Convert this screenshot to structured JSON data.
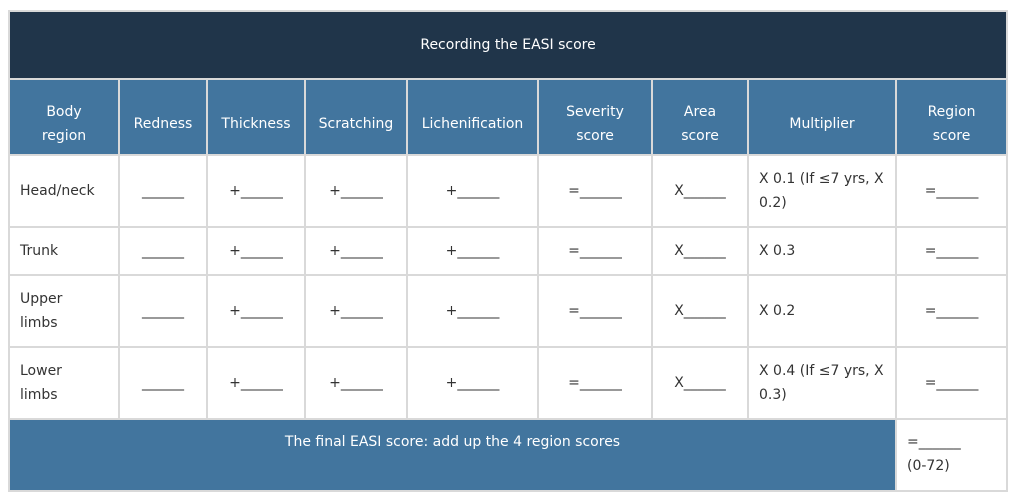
{
  "title": "Recording the EASI score",
  "headers": {
    "body_region": [
      "Body",
      "region"
    ],
    "redness": "Redness",
    "thickness": "Thickness",
    "scratching": "Scratching",
    "lichenification": "Lichenification",
    "severity_score": [
      "Severity",
      "score"
    ],
    "area_score": [
      "Area",
      "score"
    ],
    "multiplier": "Multiplier",
    "region_score": [
      "Region",
      "score"
    ]
  },
  "rows": [
    {
      "region": [
        "Head/neck"
      ],
      "redness": "______",
      "thickness": "+______",
      "scratching": "+______",
      "lichenification": "+______",
      "severity": "=______",
      "area": "X______",
      "multiplier": "X 0.1 (If ≤7 yrs, X 0.2)",
      "region_score": "=______"
    },
    {
      "region": [
        "Trunk"
      ],
      "redness": "______",
      "thickness": "+______",
      "scratching": "+______",
      "lichenification": "+______",
      "severity": "=______",
      "area": "X______",
      "multiplier": "X 0.3",
      "region_score": "=______"
    },
    {
      "region": [
        "Upper",
        "limbs"
      ],
      "redness": "______",
      "thickness": "+______",
      "scratching": "+______",
      "lichenification": "+______",
      "severity": "=______",
      "area": "X______",
      "multiplier": "X 0.2",
      "region_score": "=______"
    },
    {
      "region": [
        "Lower",
        "limbs"
      ],
      "redness": "______",
      "thickness": "+______",
      "scratching": "+______",
      "lichenification": "+______",
      "severity": "=______",
      "area": "X______",
      "multiplier": "X 0.4 (If ≤7 yrs, X 0.3)",
      "region_score": "=______"
    }
  ],
  "footer": {
    "label": "The final EASI score: add up the 4 region scores",
    "total_blank": "=______",
    "range": "(0-72)"
  }
}
